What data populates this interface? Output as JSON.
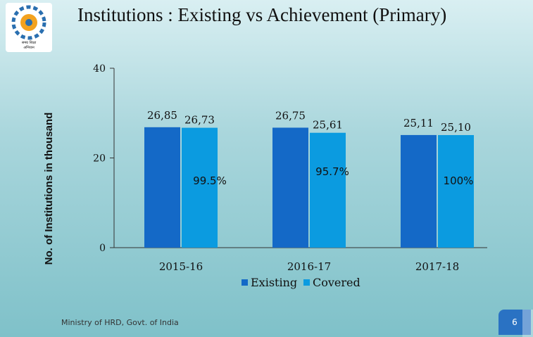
{
  "slide": {
    "title": "Institutions :   Existing vs Achievement (Primary)",
    "footer": "Ministry of HRD, Govt. of India",
    "page_number": "6",
    "logo_caption_line1": "समग्र शिक्षा",
    "logo_caption_line2": "अभियान"
  },
  "colors": {
    "existing": "#1469c7",
    "covered": "#0b9be0",
    "axis": "#333333"
  },
  "chart_data": {
    "type": "bar",
    "title": "Institutions :   Existing vs Achievement (Primary)",
    "ylabel": "No. of Institutions in thousand",
    "xlabel": "",
    "ylim": [
      0,
      40
    ],
    "yticks": [
      0,
      20,
      40
    ],
    "ytick_labels": [
      "0",
      "20",
      "40"
    ],
    "categories": [
      "2015-16",
      "2016-17",
      "2017-18"
    ],
    "series": [
      {
        "name": "Existing",
        "values": [
          26.85,
          26.75,
          25.11
        ],
        "labels": [
          "26,85",
          "26,75",
          "25,11"
        ]
      },
      {
        "name": "Covered",
        "values": [
          26.73,
          25.61,
          25.1
        ],
        "labels": [
          "26,73",
          "25,61",
          "25,10"
        ]
      }
    ],
    "percent_labels": [
      "99.5%",
      "95.7%",
      "100%"
    ],
    "legend": [
      "Existing",
      "Covered"
    ],
    "legend_position": "bottom-center",
    "grid": false
  }
}
